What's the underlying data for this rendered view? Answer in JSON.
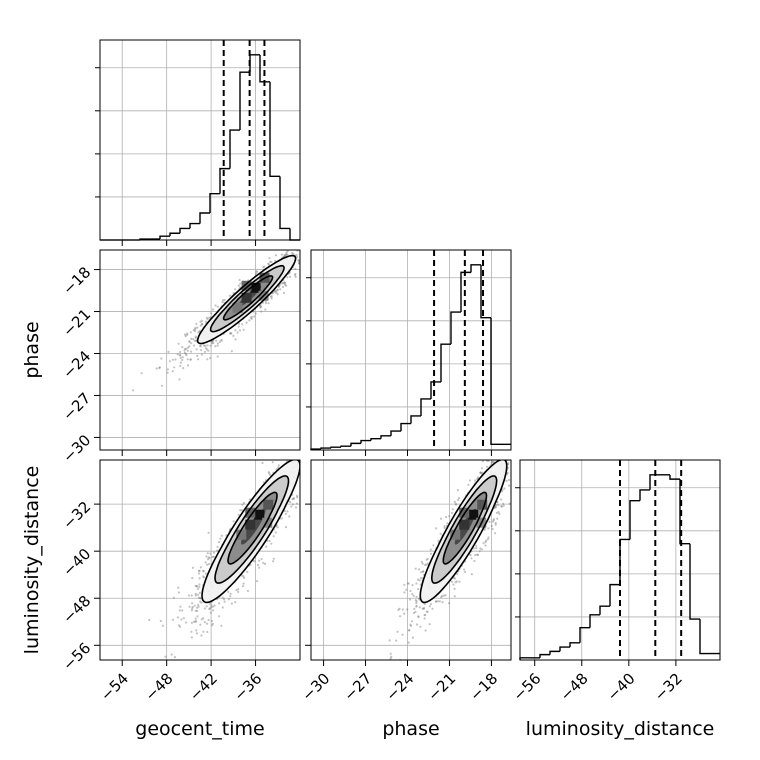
{
  "chart_data": {
    "type": "corner",
    "parameters": [
      "geocent_time",
      "phase",
      "luminosity_distance"
    ],
    "axis_labels": {
      "x": [
        "geocent_time",
        "phase",
        "luminosity_distance"
      ],
      "y": [
        "phase",
        "luminosity_distance"
      ]
    },
    "ranges": {
      "geocent_time": [
        -57,
        -30
      ],
      "phase": [
        -30.9,
        -16.6
      ],
      "luminosity_distance": [
        -58.5,
        -24.5
      ]
    },
    "ticks": {
      "geocent_time": [
        -54,
        -48,
        -42,
        -36
      ],
      "phase": [
        -30,
        -27,
        -24,
        -21,
        -18
      ],
      "luminosity_distance": [
        -56,
        -48,
        -40,
        -32
      ]
    },
    "tick_labels": {
      "geocent_time": [
        "−54",
        "−48",
        "−42",
        "−36"
      ],
      "phase": [
        "−30",
        "−27",
        "−24",
        "−21",
        "−18"
      ],
      "luminosity_distance": [
        "−56",
        "−48",
        "−40",
        "−32"
      ]
    },
    "quantile_lines": {
      "geocent_time": [
        -40.3,
        -36.8,
        -34.8
      ],
      "phase": [
        -22.1,
        -19.9,
        -18.6
      ],
      "luminosity_distance": [
        -41.5,
        -35.5,
        -31.1
      ]
    },
    "histograms": {
      "geocent_time": {
        "edges": [
          -57,
          -55.65,
          -54.3,
          -52.95,
          -51.6,
          -50.25,
          -48.9,
          -47.55,
          -46.2,
          -44.85,
          -43.5,
          -42.15,
          -40.8,
          -39.45,
          -38.1,
          -36.75,
          -35.4,
          -34.05,
          -32.7,
          -31.35,
          -30
        ],
        "counts": [
          0,
          0,
          0,
          0,
          0.5,
          0.5,
          2,
          3.5,
          6,
          8.5,
          14,
          24,
          37,
          57,
          87,
          96,
          82,
          33,
          6,
          0
        ]
      },
      "phase": {
        "edges": [
          -30.9,
          -30.185,
          -29.47,
          -28.755,
          -28.04,
          -27.325,
          -26.61,
          -25.895,
          -25.18,
          -24.465,
          -23.75,
          -23.035,
          -22.32,
          -21.605,
          -20.89,
          -20.175,
          -19.46,
          -18.745,
          -18.03,
          -17.315,
          -16.6
        ],
        "counts": [
          0.5,
          1,
          1.5,
          2,
          3.5,
          5,
          6,
          7.5,
          10,
          14,
          18,
          27,
          36,
          56,
          73,
          94,
          98,
          70,
          3,
          3
        ]
      },
      "luminosity_distance": {
        "edges": [
          -58.5,
          -56.8,
          -55.1,
          -53.4,
          -51.7,
          -50,
          -48.3,
          -46.6,
          -44.9,
          -43.2,
          -41.5,
          -39.8,
          -38.1,
          -36.4,
          -34.7,
          -33,
          -31.3,
          -29.6,
          -27.9,
          -26.2,
          -24.5
        ],
        "counts": [
          1,
          1,
          2.5,
          4,
          6,
          8,
          15,
          21,
          25,
          35,
          56,
          74,
          79,
          86,
          86,
          84,
          54,
          19,
          3,
          3
        ]
      }
    },
    "pairs": [
      {
        "x": "geocent_time",
        "y": "phase",
        "center": [
          -36.8,
          -19.9
        ],
        "sx": 3.1,
        "sy": 1.45,
        "rho": 0.93,
        "density_peak": [
          -36.0,
          -19.3
        ]
      },
      {
        "x": "geocent_time",
        "y": "luminosity_distance",
        "center": [
          -36.2,
          -35.6
        ],
        "sx": 3.1,
        "sy": 5.6,
        "rho": 0.9,
        "density_peak": [
          -35.5,
          -33.8
        ]
      },
      {
        "x": "phase",
        "y": "luminosity_distance",
        "center": [
          -19.8,
          -35.6
        ],
        "sx": 1.45,
        "sy": 5.6,
        "rho": 0.9,
        "density_peak": [
          -19.3,
          -33.8
        ]
      }
    ],
    "contour_levels_sigma": [
      0.5,
      1.0,
      1.5,
      2.0
    ],
    "colors": {
      "line": "#000000",
      "grid": "#b0b0b0",
      "points": "#7a7a7a",
      "contour_fill": [
        "#f2f2f2",
        "#c8c8c8",
        "#888888",
        "#444444"
      ]
    },
    "grid": true
  }
}
